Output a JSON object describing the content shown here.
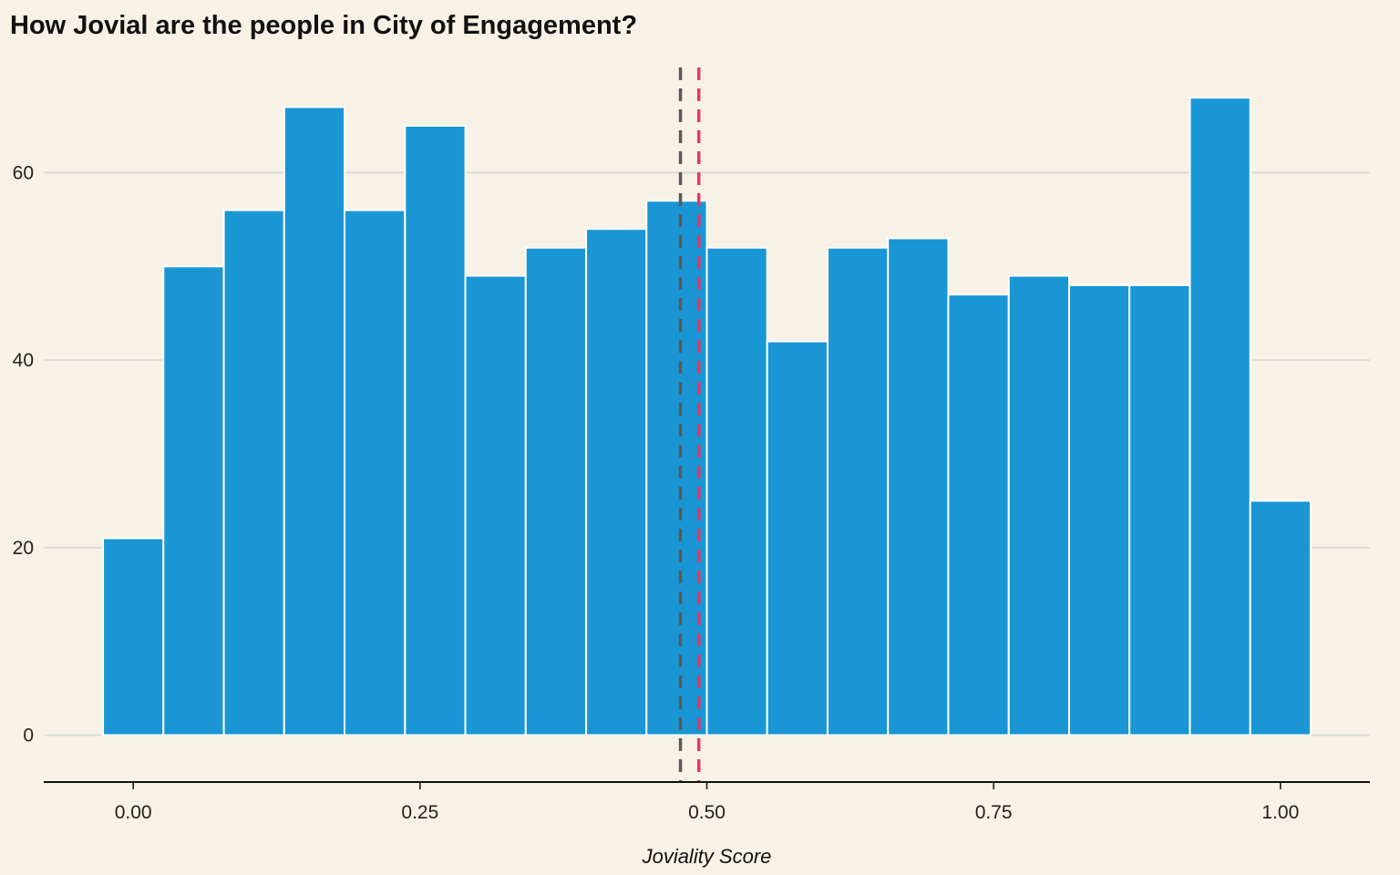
{
  "chart_data": {
    "type": "bar",
    "title": "How Jovial are the people in City of Engagement?",
    "xlabel": "Joviality Score",
    "ylabel": "",
    "xlim": [
      -0.078,
      1.078
    ],
    "ylim": [
      -5,
      72
    ],
    "grid": true,
    "bin_width": 0.05263,
    "bins": [
      {
        "x": 0.0,
        "count": 21
      },
      {
        "x": 0.0526,
        "count": 50
      },
      {
        "x": 0.1053,
        "count": 56
      },
      {
        "x": 0.1579,
        "count": 67
      },
      {
        "x": 0.2105,
        "count": 56
      },
      {
        "x": 0.2632,
        "count": 65
      },
      {
        "x": 0.3158,
        "count": 49
      },
      {
        "x": 0.3684,
        "count": 52
      },
      {
        "x": 0.4211,
        "count": 54
      },
      {
        "x": 0.4737,
        "count": 57
      },
      {
        "x": 0.5263,
        "count": 52
      },
      {
        "x": 0.5789,
        "count": 42
      },
      {
        "x": 0.6316,
        "count": 52
      },
      {
        "x": 0.6842,
        "count": 53
      },
      {
        "x": 0.7368,
        "count": 47
      },
      {
        "x": 0.7895,
        "count": 49
      },
      {
        "x": 0.8421,
        "count": 48
      },
      {
        "x": 0.8947,
        "count": 48
      },
      {
        "x": 0.9474,
        "count": 68
      },
      {
        "x": 1.0,
        "count": 25
      }
    ],
    "x_ticks": [
      {
        "value": 0.0,
        "label": "0.00"
      },
      {
        "value": 0.25,
        "label": "0.25"
      },
      {
        "value": 0.5,
        "label": "0.50"
      },
      {
        "value": 0.75,
        "label": "0.75"
      },
      {
        "value": 1.0,
        "label": "1.00"
      }
    ],
    "y_ticks": [
      {
        "value": 0,
        "label": "0"
      },
      {
        "value": 20,
        "label": "20"
      },
      {
        "value": 40,
        "label": "40"
      },
      {
        "value": 60,
        "label": "60"
      }
    ],
    "reference_lines": [
      {
        "x": 0.477,
        "color": "#5a5a5a",
        "style": "dashed"
      },
      {
        "x": 0.493,
        "color": "#e8385e",
        "style": "dashed"
      }
    ],
    "colors": {
      "bar_fill": "#1a96d4",
      "bar_outline": "#ffffff",
      "background": "#f8f2e6",
      "grid": "#dcdcdc",
      "axis": "#111111"
    }
  }
}
